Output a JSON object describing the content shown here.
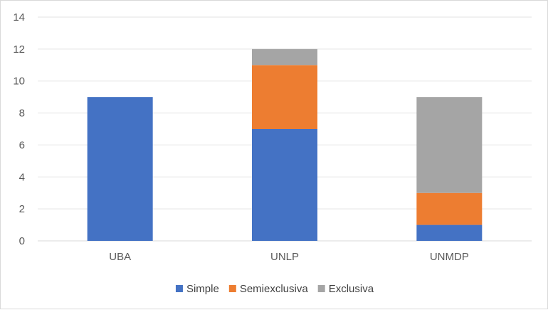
{
  "chart_data": {
    "type": "bar",
    "stacked": true,
    "categories": [
      "UBA",
      "UNLP",
      "UNMDP"
    ],
    "series": [
      {
        "name": "Simple",
        "values": [
          9,
          7,
          1
        ],
        "color": "#4472c4"
      },
      {
        "name": "Semiexclusiva",
        "values": [
          0,
          4,
          2
        ],
        "color": "#ed7d31"
      },
      {
        "name": "Exclusiva",
        "values": [
          0,
          1,
          6
        ],
        "color": "#a5a5a5"
      }
    ],
    "ylim": [
      0,
      14
    ],
    "yticks": [
      0,
      2,
      4,
      6,
      8,
      10,
      12,
      14
    ],
    "grid": true,
    "legend_position": "bottom"
  }
}
